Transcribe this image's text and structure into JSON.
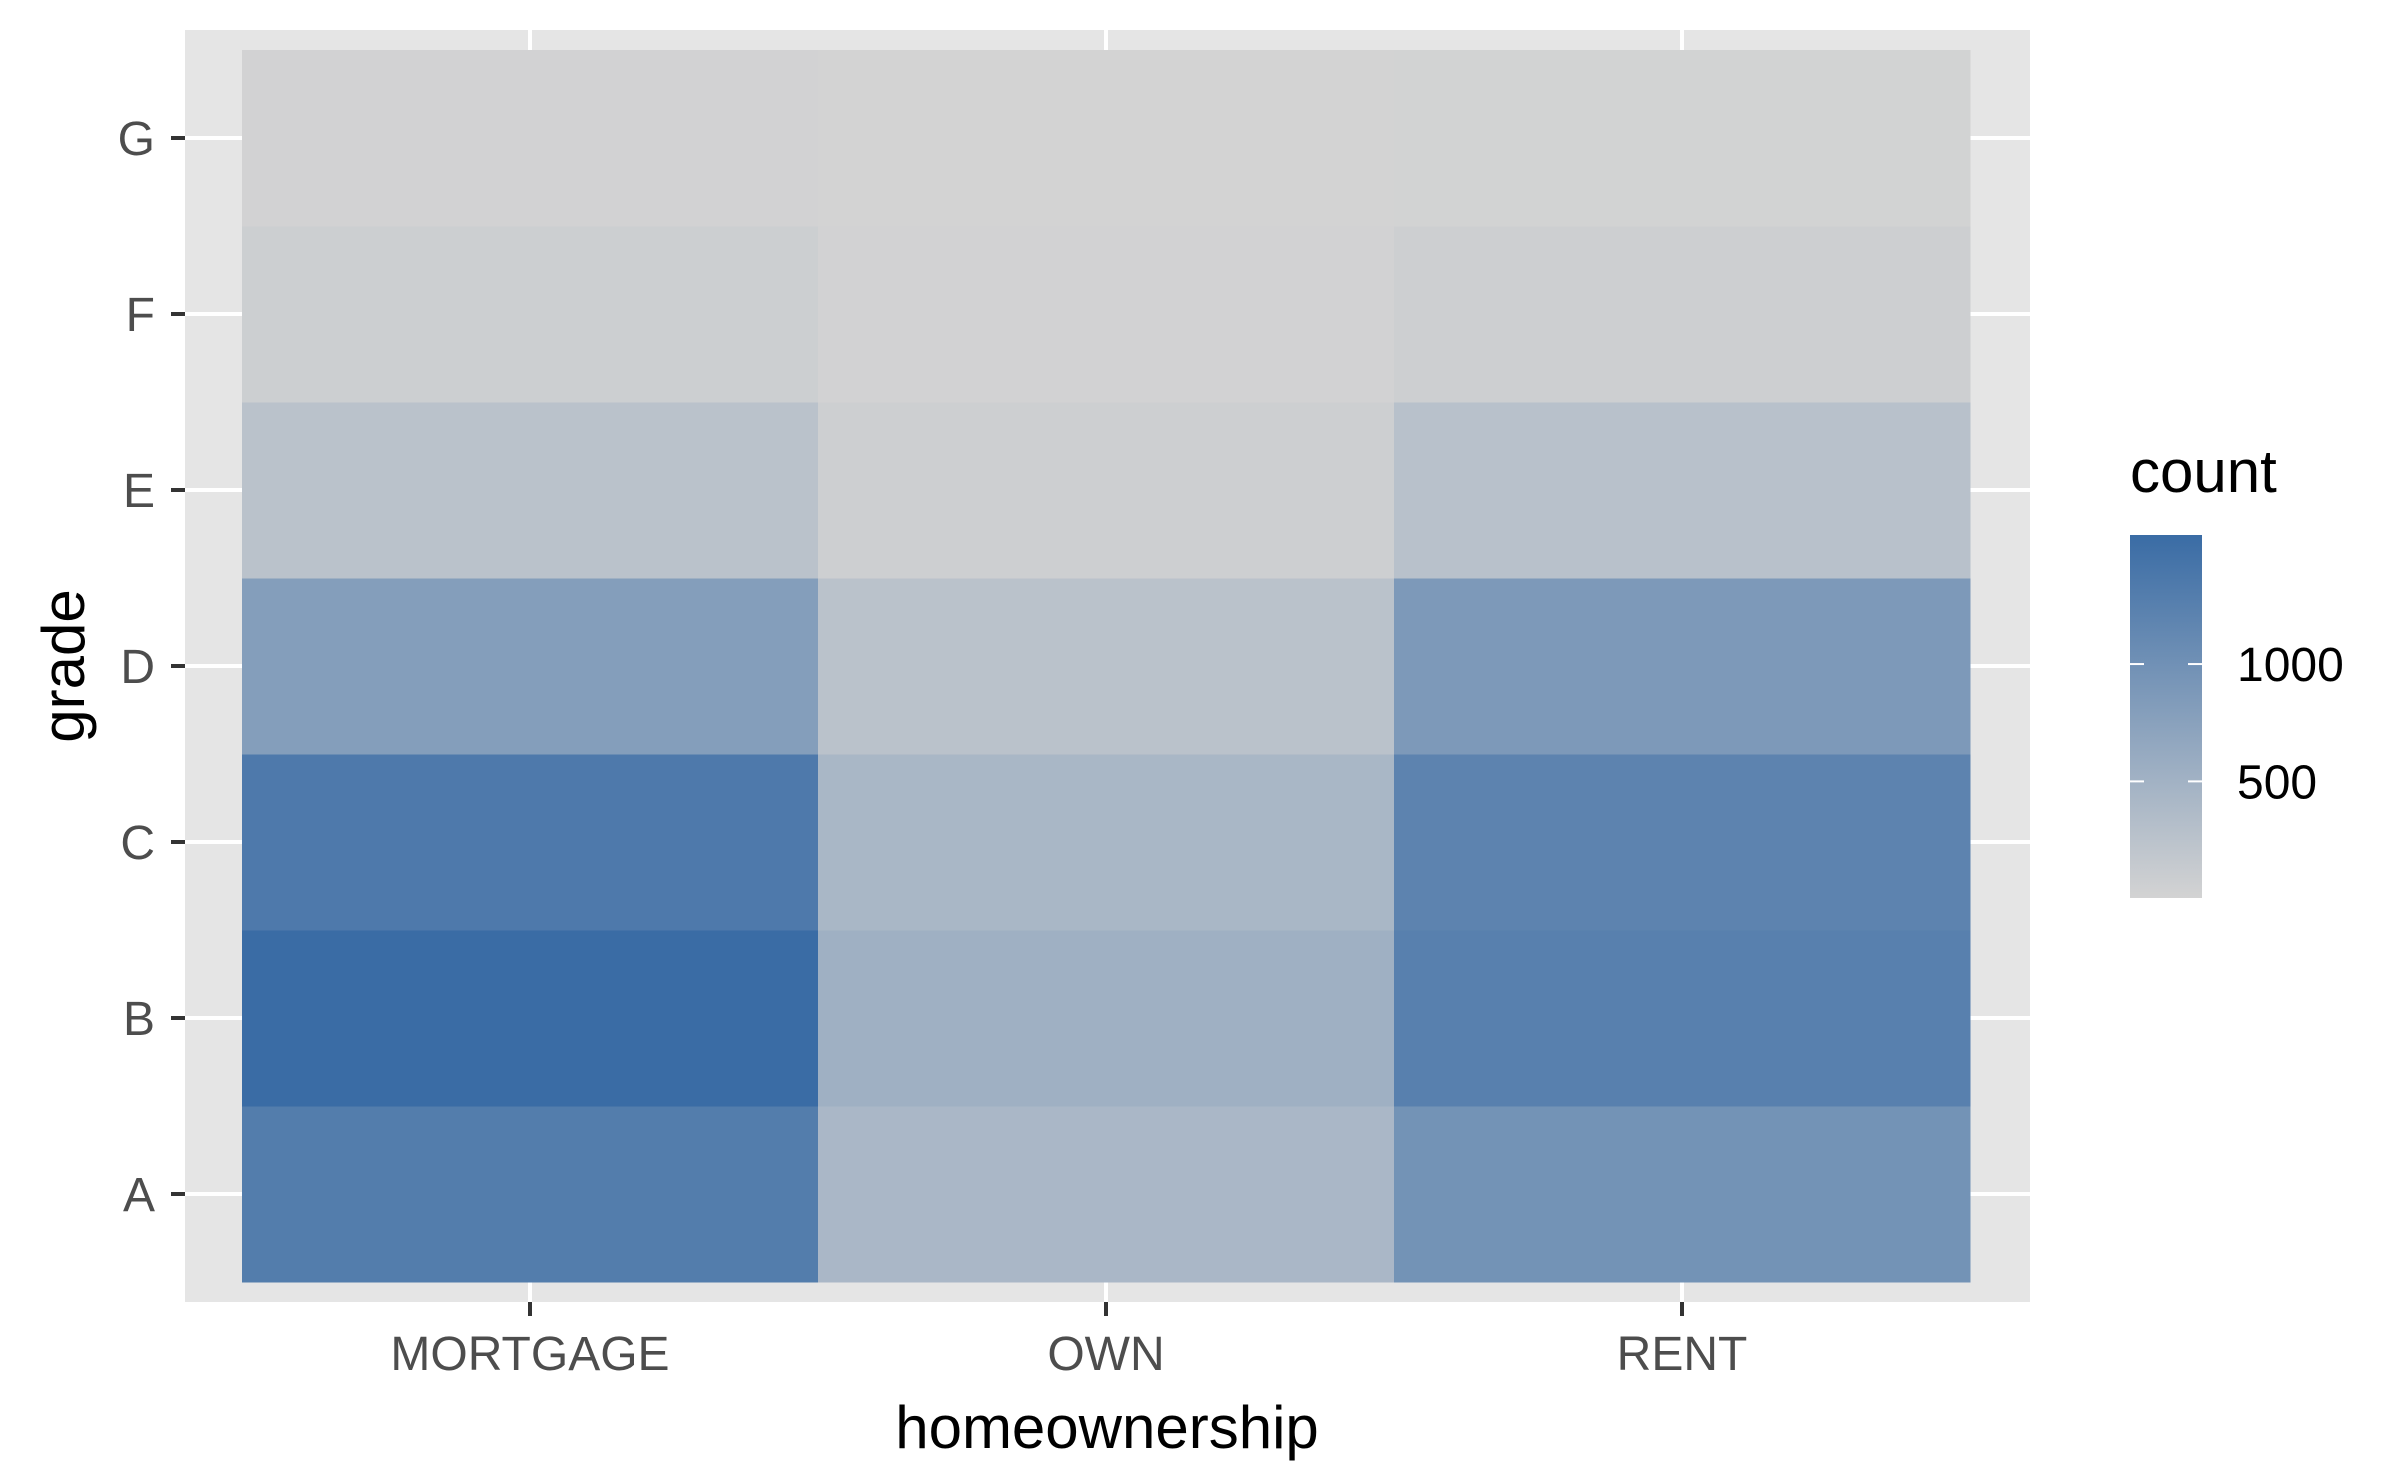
{
  "chart_data": {
    "type": "heatmap",
    "title": "",
    "xlabel": "homeownership",
    "ylabel": "grade",
    "x_categories": [
      "MORTGAGE",
      "OWN",
      "RENT"
    ],
    "y_categories": [
      "A",
      "B",
      "C",
      "D",
      "E",
      "F",
      "G"
    ],
    "cells": [
      {
        "x": "MORTGAGE",
        "y": "A",
        "value": 1300
      },
      {
        "x": "MORTGAGE",
        "y": "B",
        "value": 1550
      },
      {
        "x": "MORTGAGE",
        "y": "C",
        "value": 1350
      },
      {
        "x": "MORTGAGE",
        "y": "D",
        "value": 800
      },
      {
        "x": "MORTGAGE",
        "y": "E",
        "value": 260
      },
      {
        "x": "MORTGAGE",
        "y": "F",
        "value": 70
      },
      {
        "x": "MORTGAGE",
        "y": "G",
        "value": 12
      },
      {
        "x": "OWN",
        "y": "A",
        "value": 420
      },
      {
        "x": "OWN",
        "y": "B",
        "value": 530
      },
      {
        "x": "OWN",
        "y": "C",
        "value": 430
      },
      {
        "x": "OWN",
        "y": "D",
        "value": 260
      },
      {
        "x": "OWN",
        "y": "E",
        "value": 60
      },
      {
        "x": "OWN",
        "y": "F",
        "value": 15
      },
      {
        "x": "OWN",
        "y": "G",
        "value": 3
      },
      {
        "x": "RENT",
        "y": "A",
        "value": 970
      },
      {
        "x": "RENT",
        "y": "B",
        "value": 1250
      },
      {
        "x": "RENT",
        "y": "C",
        "value": 1200
      },
      {
        "x": "RENT",
        "y": "D",
        "value": 870
      },
      {
        "x": "RENT",
        "y": "E",
        "value": 280
      },
      {
        "x": "RENT",
        "y": "F",
        "value": 60
      },
      {
        "x": "RENT",
        "y": "G",
        "value": 10
      }
    ],
    "legend": {
      "title": "count",
      "position": "right",
      "breaks": [
        500,
        1000
      ],
      "min": 3,
      "max": 1550,
      "low_color": "#d3d3d3",
      "high_color": "#3a6ca5"
    },
    "grid": true,
    "panel_background": "#e5e5e5",
    "grid_color": "#ffffff"
  }
}
